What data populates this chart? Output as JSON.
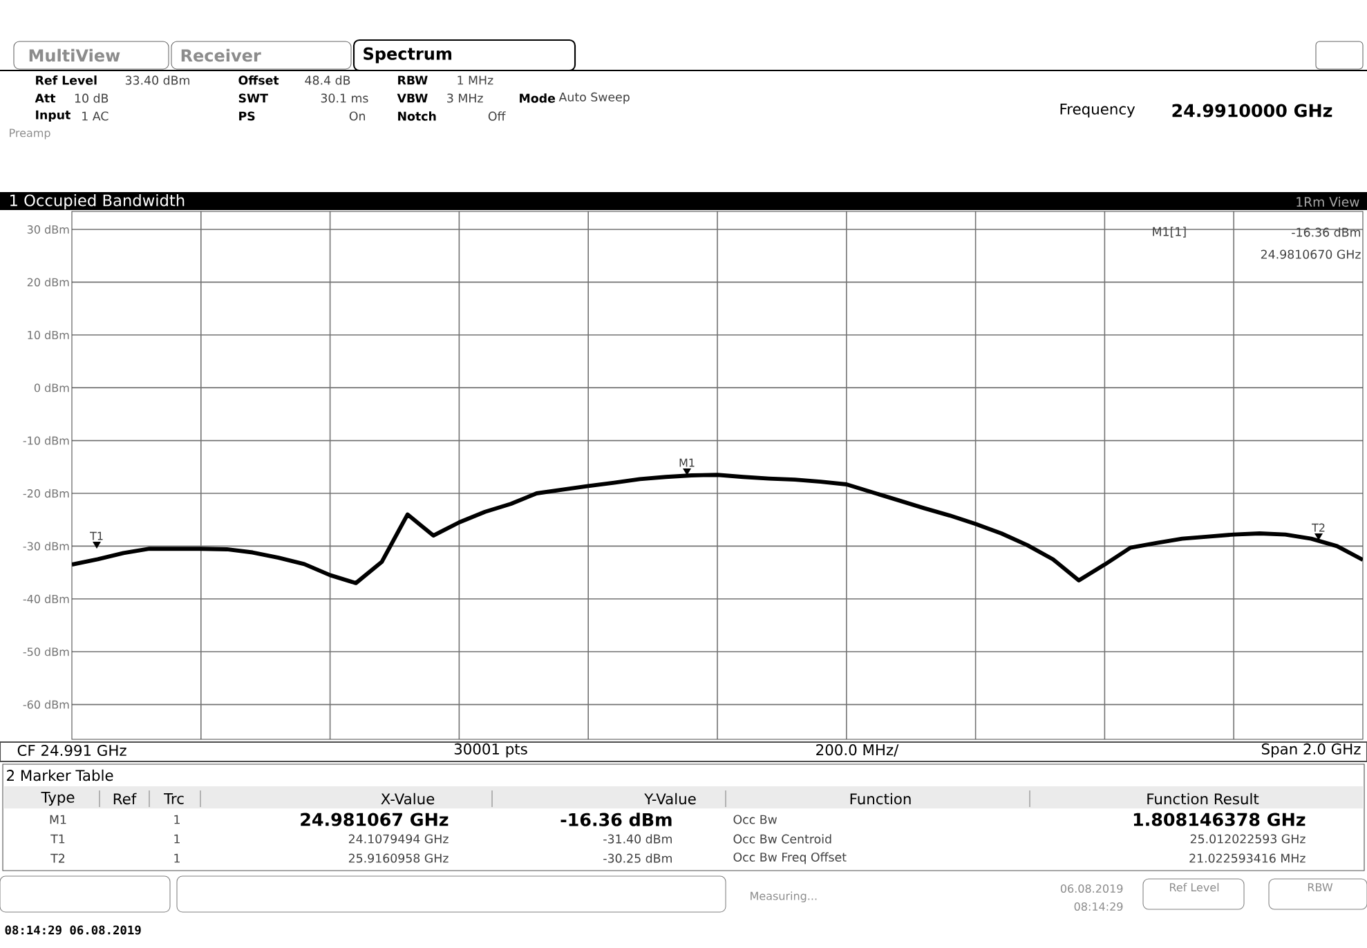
{
  "chart_data": {
    "type": "line",
    "title": "1 Occupied Bandwidth",
    "categories": [
      null,
      null,
      null,
      null,
      null,
      null,
      null,
      null,
      null,
      null,
      null,
      null,
      null,
      null,
      null,
      null,
      null,
      null,
      null,
      null,
      null,
      null,
      null,
      null,
      null,
      null,
      null,
      null,
      null,
      null,
      null,
      null,
      null,
      null,
      null,
      null,
      null,
      null,
      null,
      null,
      null,
      null,
      null,
      null,
      null,
      null,
      null,
      null,
      null,
      null,
      null
    ],
    "ylim": [
      -66.6,
      33.4
    ],
    "yticks": [
      {
        "value": 30,
        "label": "30 dBm"
      },
      {
        "value": 20,
        "label": "20 dBm"
      },
      {
        "value": 10,
        "label": "10 dBm"
      },
      {
        "value": 0,
        "label": "0 dBm"
      },
      {
        "value": -10,
        "label": "-10 dBm"
      },
      {
        "value": -20,
        "label": "-20 dBm"
      },
      {
        "value": -30,
        "label": "-30 dBm"
      },
      {
        "value": -40,
        "label": "-40 dBm"
      },
      {
        "value": -50,
        "label": "-50 dBm"
      },
      {
        "value": -60,
        "label": "-60 dBm"
      }
    ],
    "tick_labels": "y",
    "grid": true,
    "series": [
      {
        "color": "#000000",
        "values": [
          -33.5,
          -32.5,
          -31.3,
          -30.5,
          -30.5,
          -30.5,
          -30.6,
          -31.2,
          -32.2,
          -33.4,
          -35.5,
          -37.0,
          -33.0,
          -24.0,
          -28.0,
          -25.5,
          -23.5,
          -22.0,
          -20.0,
          -19.3,
          -18.6,
          -18.0,
          -17.3,
          -16.9,
          -16.6,
          -16.5,
          -16.9,
          -17.2,
          -17.4,
          -17.8,
          -18.3,
          -19.8,
          -21.3,
          -22.8,
          -24.2,
          -25.8,
          -27.6,
          -29.8,
          -32.5,
          -36.5,
          -33.5,
          -30.3,
          -29.4,
          -28.6,
          -28.2,
          -27.8,
          -27.6,
          -27.8,
          -28.6,
          -30.0,
          -32.6
        ]
      }
    ],
    "annotations": [
      "MultiView",
      "Receiver",
      "Spectrum",
      "Ref Level",
      "33.40 dBm",
      "Offset",
      "48.4 dB",
      "RBW",
      "1 MHz",
      "Att",
      "10 dB",
      "SWT",
      "30.1 ms",
      "VBW",
      "3 MHz",
      "Mode",
      "Auto Sweep",
      "Input",
      "1 AC",
      "PS",
      "On",
      "Notch",
      "Off",
      "Preamp",
      "Frequency",
      "24.9910000 GHz",
      "1Rm View",
      "M1[1]",
      "-16.36 dBm",
      "24.9810670 GHz",
      "M1",
      "T1",
      "T2",
      "CF 24.991 GHz",
      "30001 pts",
      "200.0 MHz/",
      "Span 2.0 GHz",
      "2 Marker Table",
      "Type",
      "Ref",
      "Trc",
      "X-Value",
      "Y-Value",
      "Function",
      "Function Result",
      "M1",
      "1",
      "24.981067 GHz",
      "-16.36 dBm",
      "Occ Bw",
      "1.808146378 GHz",
      "T1",
      "1",
      "24.1079494 GHz",
      "-31.40 dBm",
      "Occ Bw Centroid",
      "25.012022593 GHz",
      "T2",
      "1",
      "25.9160958 GHz",
      "-30.25 dBm",
      "Occ Bw Freq Offset",
      "21.022593416 MHz",
      "Measuring...",
      "06.08.2019",
      "08:14:29",
      "Ref Level",
      "RBW",
      "08:14:29 06.08.2019"
    ]
  }
}
